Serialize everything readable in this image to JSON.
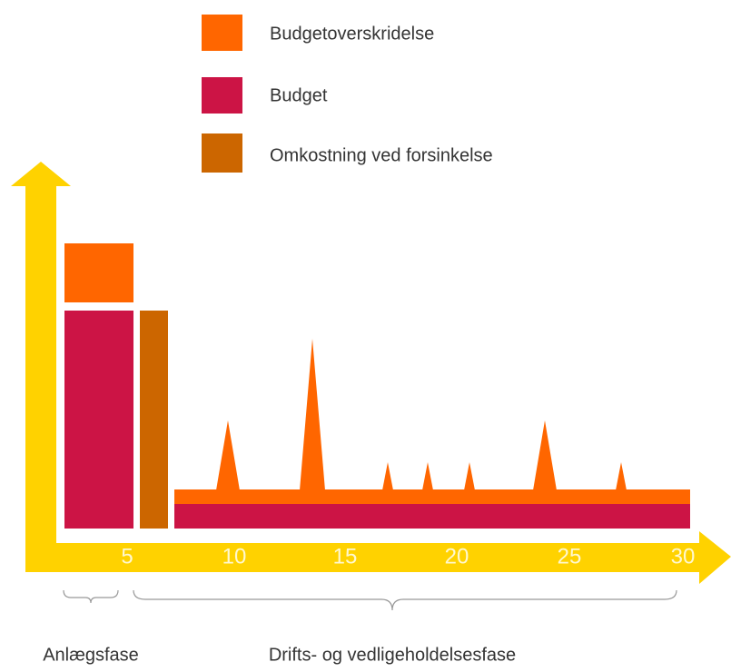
{
  "legend": {
    "items": [
      "Budgetoverskridelse",
      "Budget",
      "Omkostning ved forsinkelse"
    ]
  },
  "axis": {
    "ticks": [
      5,
      10,
      15,
      20,
      25,
      30
    ]
  },
  "phases": [
    "Anlægsfase",
    "Drifts- og vedligeholdelsesfase"
  ]
}
